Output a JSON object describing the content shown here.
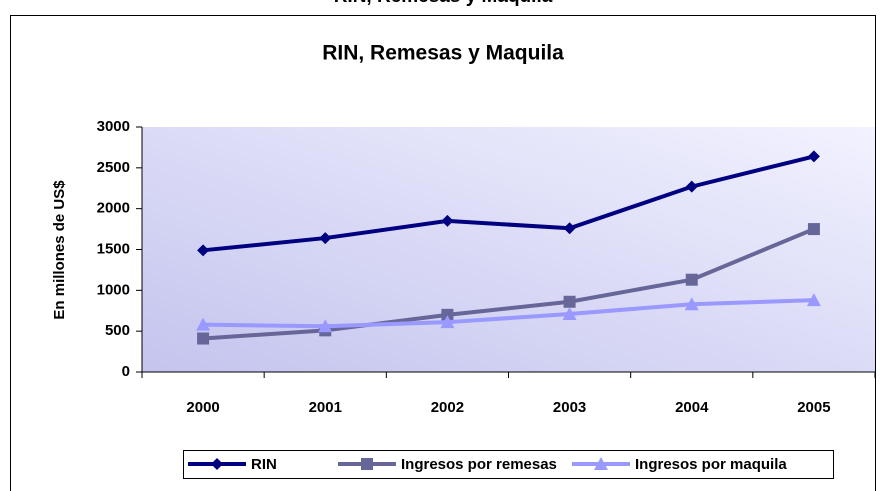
{
  "chart_data": {
    "type": "line",
    "title": "RIN, Remesas y Maquila",
    "ylabel": "En millones de US$",
    "categories": [
      "2000",
      "2001",
      "2002",
      "2003",
      "2004",
      "2005"
    ],
    "series": [
      {
        "name": "RIN",
        "color": "#000080",
        "marker": "diamond",
        "values": [
          1490,
          1640,
          1850,
          1760,
          2270,
          2640
        ]
      },
      {
        "name": "Ingresos por remesas",
        "color": "#666699",
        "marker": "square",
        "values": [
          410,
          510,
          700,
          860,
          1130,
          1750
        ]
      },
      {
        "name": "Ingresos por maquila",
        "color": "#9999ff",
        "marker": "triangle",
        "values": [
          580,
          560,
          610,
          710,
          830,
          880
        ]
      }
    ],
    "ylim": [
      0,
      3000
    ],
    "yticks": [
      0,
      500,
      1000,
      1500,
      2000,
      2500,
      3000
    ],
    "legend": "bottom"
  }
}
